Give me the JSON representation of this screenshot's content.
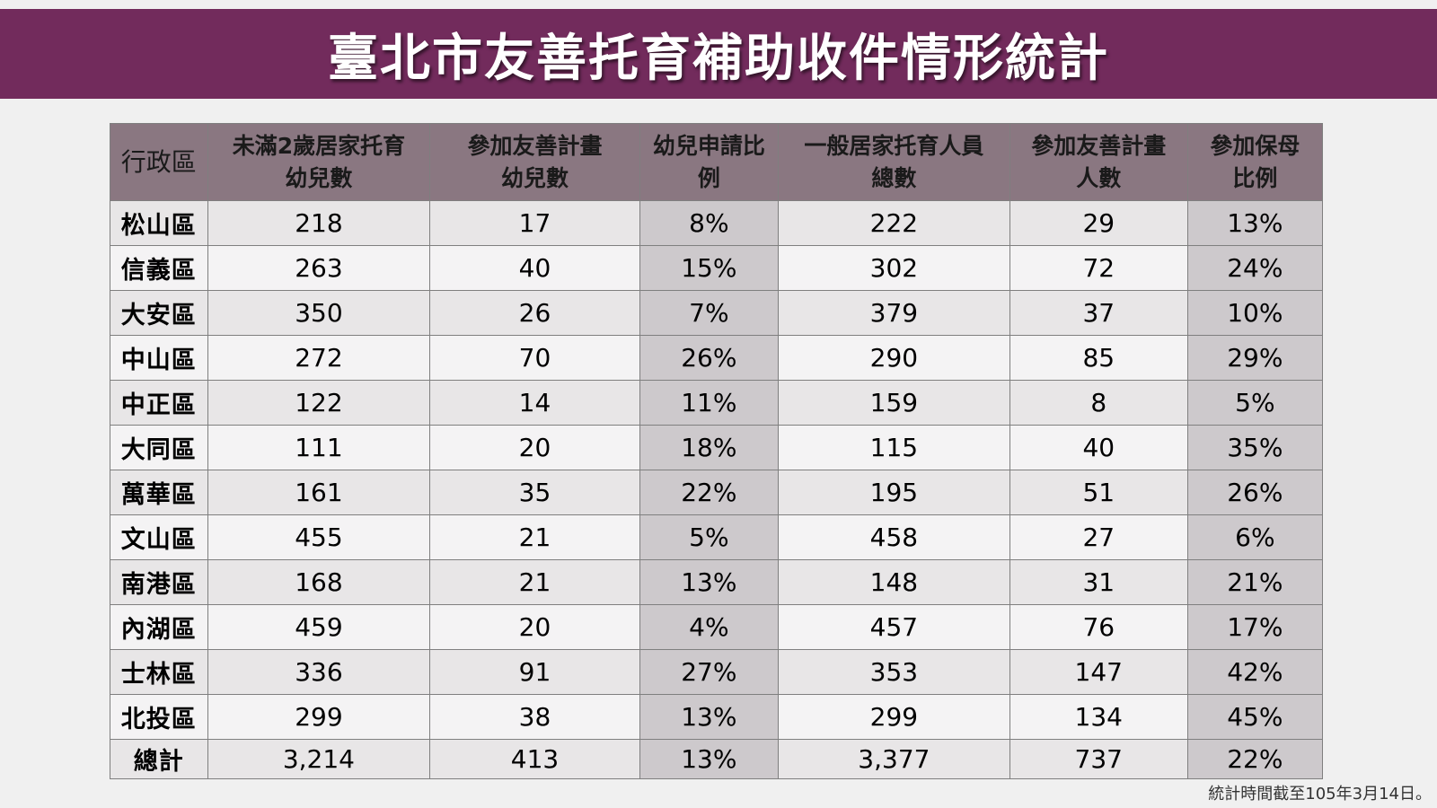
{
  "title": "臺北市友善托育補助收件情形統計",
  "table": {
    "headers": [
      {
        "line1": "行政區",
        "line2": ""
      },
      {
        "line1": "未滿2歲居家托育",
        "line2": "幼兒數"
      },
      {
        "line1": "參加友善計畫",
        "line2": "幼兒數"
      },
      {
        "line1": "幼兒申請比",
        "line2": "例"
      },
      {
        "line1": "一般居家托育人員",
        "line2": "總數"
      },
      {
        "line1": "參加友善計畫",
        "line2": "人數"
      },
      {
        "line1": "參加保母",
        "line2": "比例"
      }
    ],
    "rows": [
      [
        "松山區",
        "218",
        "17",
        "8%",
        "222",
        "29",
        "13%"
      ],
      [
        "信義區",
        "263",
        "40",
        "15%",
        "302",
        "72",
        "24%"
      ],
      [
        "大安區",
        "350",
        "26",
        "7%",
        "379",
        "37",
        "10%"
      ],
      [
        "中山區",
        "272",
        "70",
        "26%",
        "290",
        "85",
        "29%"
      ],
      [
        "中正區",
        "122",
        "14",
        "11%",
        "159",
        "8",
        "5%"
      ],
      [
        "大同區",
        "111",
        "20",
        "18%",
        "115",
        "40",
        "35%"
      ],
      [
        "萬華區",
        "161",
        "35",
        "22%",
        "195",
        "51",
        "26%"
      ],
      [
        "文山區",
        "455",
        "21",
        "5%",
        "458",
        "27",
        "6%"
      ],
      [
        "南港區",
        "168",
        "21",
        "13%",
        "148",
        "31",
        "21%"
      ],
      [
        "內湖區",
        "459",
        "20",
        "4%",
        "457",
        "76",
        "17%"
      ],
      [
        "士林區",
        "336",
        "91",
        "27%",
        "353",
        "147",
        "42%"
      ],
      [
        "北投區",
        "299",
        "38",
        "13%",
        "299",
        "134",
        "45%"
      ]
    ],
    "total": [
      "總計",
      "3,214",
      "413",
      "13%",
      "3,377",
      "737",
      "22%"
    ]
  },
  "footnote": "統計時間截至105年3月14日。",
  "colors": {
    "title_bar": "#722b5c",
    "header_bg": "#8a7781",
    "ratio_col_bg": "#cdc9cc"
  }
}
